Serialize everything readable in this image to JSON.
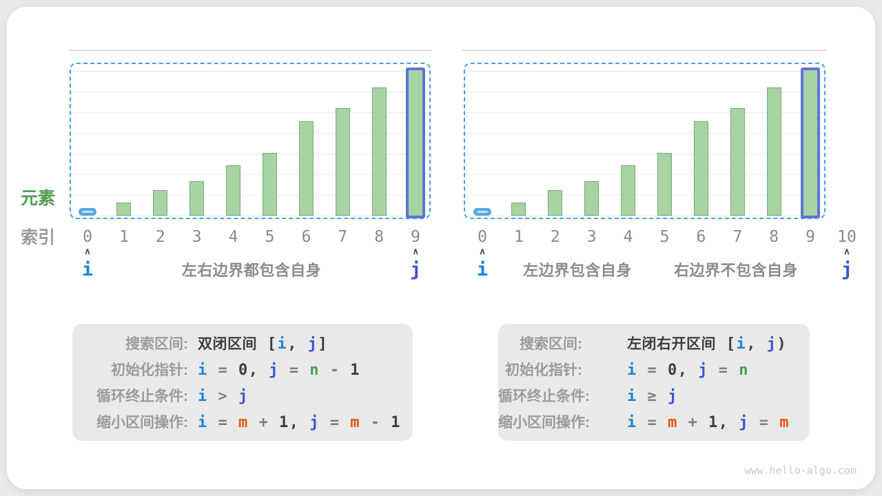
{
  "colors": {
    "i_blue": "#1b86da",
    "j_blue": "#3a55d8",
    "j_blue_border": "#5c74d7",
    "n_green": "#4a9e50",
    "m_orange": "#e9570b",
    "bar_fill": "#a8d3a3",
    "bar_stroke": "#76a97a",
    "dash_blue": "#46a1e8",
    "pill_blue": "#53a7e9",
    "element_label_green": "#4d9e52"
  },
  "axis_labels": {
    "y": "元素",
    "x": "索引"
  },
  "caret_glyph": "∧",
  "charts": [
    {
      "name": "closed-interval",
      "indices": [
        "0",
        "1",
        "2",
        "3",
        "4",
        "5",
        "6",
        "7",
        "8",
        "9"
      ],
      "values": [
        8,
        19,
        37,
        50,
        73,
        91,
        137,
        156,
        186,
        210
      ],
      "bar_styles": {
        "0": "i-pill",
        "9": "j-outline"
      },
      "pointers": [
        {
          "label": "i",
          "index": 0,
          "color": "i"
        },
        {
          "label": "j",
          "index": 9,
          "color": "j"
        }
      ],
      "captions": [
        "左右边界都包含自身"
      ]
    },
    {
      "name": "left-closed-right-open",
      "indices": [
        "0",
        "1",
        "2",
        "3",
        "4",
        "5",
        "6",
        "7",
        "8",
        "9",
        "10"
      ],
      "values": [
        8,
        19,
        37,
        50,
        73,
        91,
        137,
        156,
        186,
        210,
        null
      ],
      "bar_styles": {
        "0": "i-pill",
        "9": "j-outline"
      },
      "pointers": [
        {
          "label": "i",
          "index": 0,
          "color": "i"
        },
        {
          "label": "j",
          "index": 10,
          "color": "j"
        }
      ],
      "captions": [
        "左边界包含自身",
        "右边界不包含自身"
      ]
    }
  ],
  "boxes": [
    {
      "name": "closed-interval-rules",
      "rows": [
        {
          "label": "搜索区间:",
          "tokens": [
            {
              "c": "d",
              "t": "双闭区间",
              "zh": true
            },
            {
              "c": "d",
              "t": " ["
            },
            {
              "c": "i",
              "t": "i"
            },
            {
              "c": "d",
              "t": ", "
            },
            {
              "c": "j",
              "t": "j"
            },
            {
              "c": "d",
              "t": "]"
            }
          ]
        },
        {
          "label": "初始化指针:",
          "tokens": [
            {
              "c": "i",
              "t": "i"
            },
            {
              "c": "o",
              "t": " = "
            },
            {
              "c": "d",
              "t": "0, "
            },
            {
              "c": "j",
              "t": "j"
            },
            {
              "c": "o",
              "t": " = "
            },
            {
              "c": "n",
              "t": "n"
            },
            {
              "c": "o",
              "t": " - "
            },
            {
              "c": "d",
              "t": "1"
            }
          ]
        },
        {
          "label": "循环终止条件:",
          "tokens": [
            {
              "c": "i",
              "t": "i"
            },
            {
              "c": "o",
              "t": " > "
            },
            {
              "c": "j",
              "t": "j"
            }
          ]
        },
        {
          "label": "缩小区间操作:",
          "tokens": [
            {
              "c": "i",
              "t": "i"
            },
            {
              "c": "o",
              "t": " = "
            },
            {
              "c": "m",
              "t": "m"
            },
            {
              "c": "o",
              "t": " + "
            },
            {
              "c": "d",
              "t": "1, "
            },
            {
              "c": "j",
              "t": "j"
            },
            {
              "c": "o",
              "t": " = "
            },
            {
              "c": "m",
              "t": "m"
            },
            {
              "c": "o",
              "t": " - "
            },
            {
              "c": "d",
              "t": "1"
            }
          ]
        }
      ]
    },
    {
      "name": "half-open-interval-rules",
      "rows": [
        {
          "label": "搜索区间:",
          "tokens": [
            {
              "c": "d",
              "t": "左闭右开区间",
              "zh": true
            },
            {
              "c": "d",
              "t": " ["
            },
            {
              "c": "i",
              "t": "i"
            },
            {
              "c": "d",
              "t": ", "
            },
            {
              "c": "j",
              "t": "j"
            },
            {
              "c": "d",
              "t": ")"
            }
          ]
        },
        {
          "label": "初始化指针:",
          "tokens": [
            {
              "c": "i",
              "t": "i"
            },
            {
              "c": "o",
              "t": " = "
            },
            {
              "c": "d",
              "t": "0, "
            },
            {
              "c": "j",
              "t": "j"
            },
            {
              "c": "o",
              "t": " = "
            },
            {
              "c": "n",
              "t": "n"
            }
          ]
        },
        {
          "label": "循环终止条件:",
          "tokens": [
            {
              "c": "i",
              "t": "i"
            },
            {
              "c": "o",
              "t": " ≥ "
            },
            {
              "c": "j",
              "t": "j"
            }
          ]
        },
        {
          "label": "缩小区间操作:",
          "tokens": [
            {
              "c": "i",
              "t": "i"
            },
            {
              "c": "o",
              "t": " = "
            },
            {
              "c": "m",
              "t": "m"
            },
            {
              "c": "o",
              "t": " + "
            },
            {
              "c": "d",
              "t": "1, "
            },
            {
              "c": "j",
              "t": "j"
            },
            {
              "c": "o",
              "t": " = "
            },
            {
              "c": "m",
              "t": "m"
            }
          ]
        }
      ]
    }
  ],
  "chart_data": [
    {
      "type": "bar",
      "title": "双闭区间 [i, j]",
      "categories": [
        "0",
        "1",
        "2",
        "3",
        "4",
        "5",
        "6",
        "7",
        "8",
        "9"
      ],
      "values": [
        8,
        19,
        37,
        50,
        73,
        91,
        137,
        156,
        186,
        210
      ],
      "xlabel": "索引",
      "ylabel": "元素",
      "grid": true,
      "legend_position": "none",
      "annotations": [
        "i at index 0",
        "j at index 9",
        "左右边界都包含自身"
      ]
    },
    {
      "type": "bar",
      "title": "左闭右开区间 [i, j)",
      "categories": [
        "0",
        "1",
        "2",
        "3",
        "4",
        "5",
        "6",
        "7",
        "8",
        "9",
        "10"
      ],
      "values": [
        8,
        19,
        37,
        50,
        73,
        91,
        137,
        156,
        186,
        210,
        null
      ],
      "xlabel": "索引",
      "ylabel": "元素",
      "grid": true,
      "legend_position": "none",
      "annotations": [
        "i at index 0",
        "j at index 10",
        "左边界包含自身",
        "右边界不包含自身"
      ]
    }
  ],
  "watermark": "www.hello-algo.com"
}
